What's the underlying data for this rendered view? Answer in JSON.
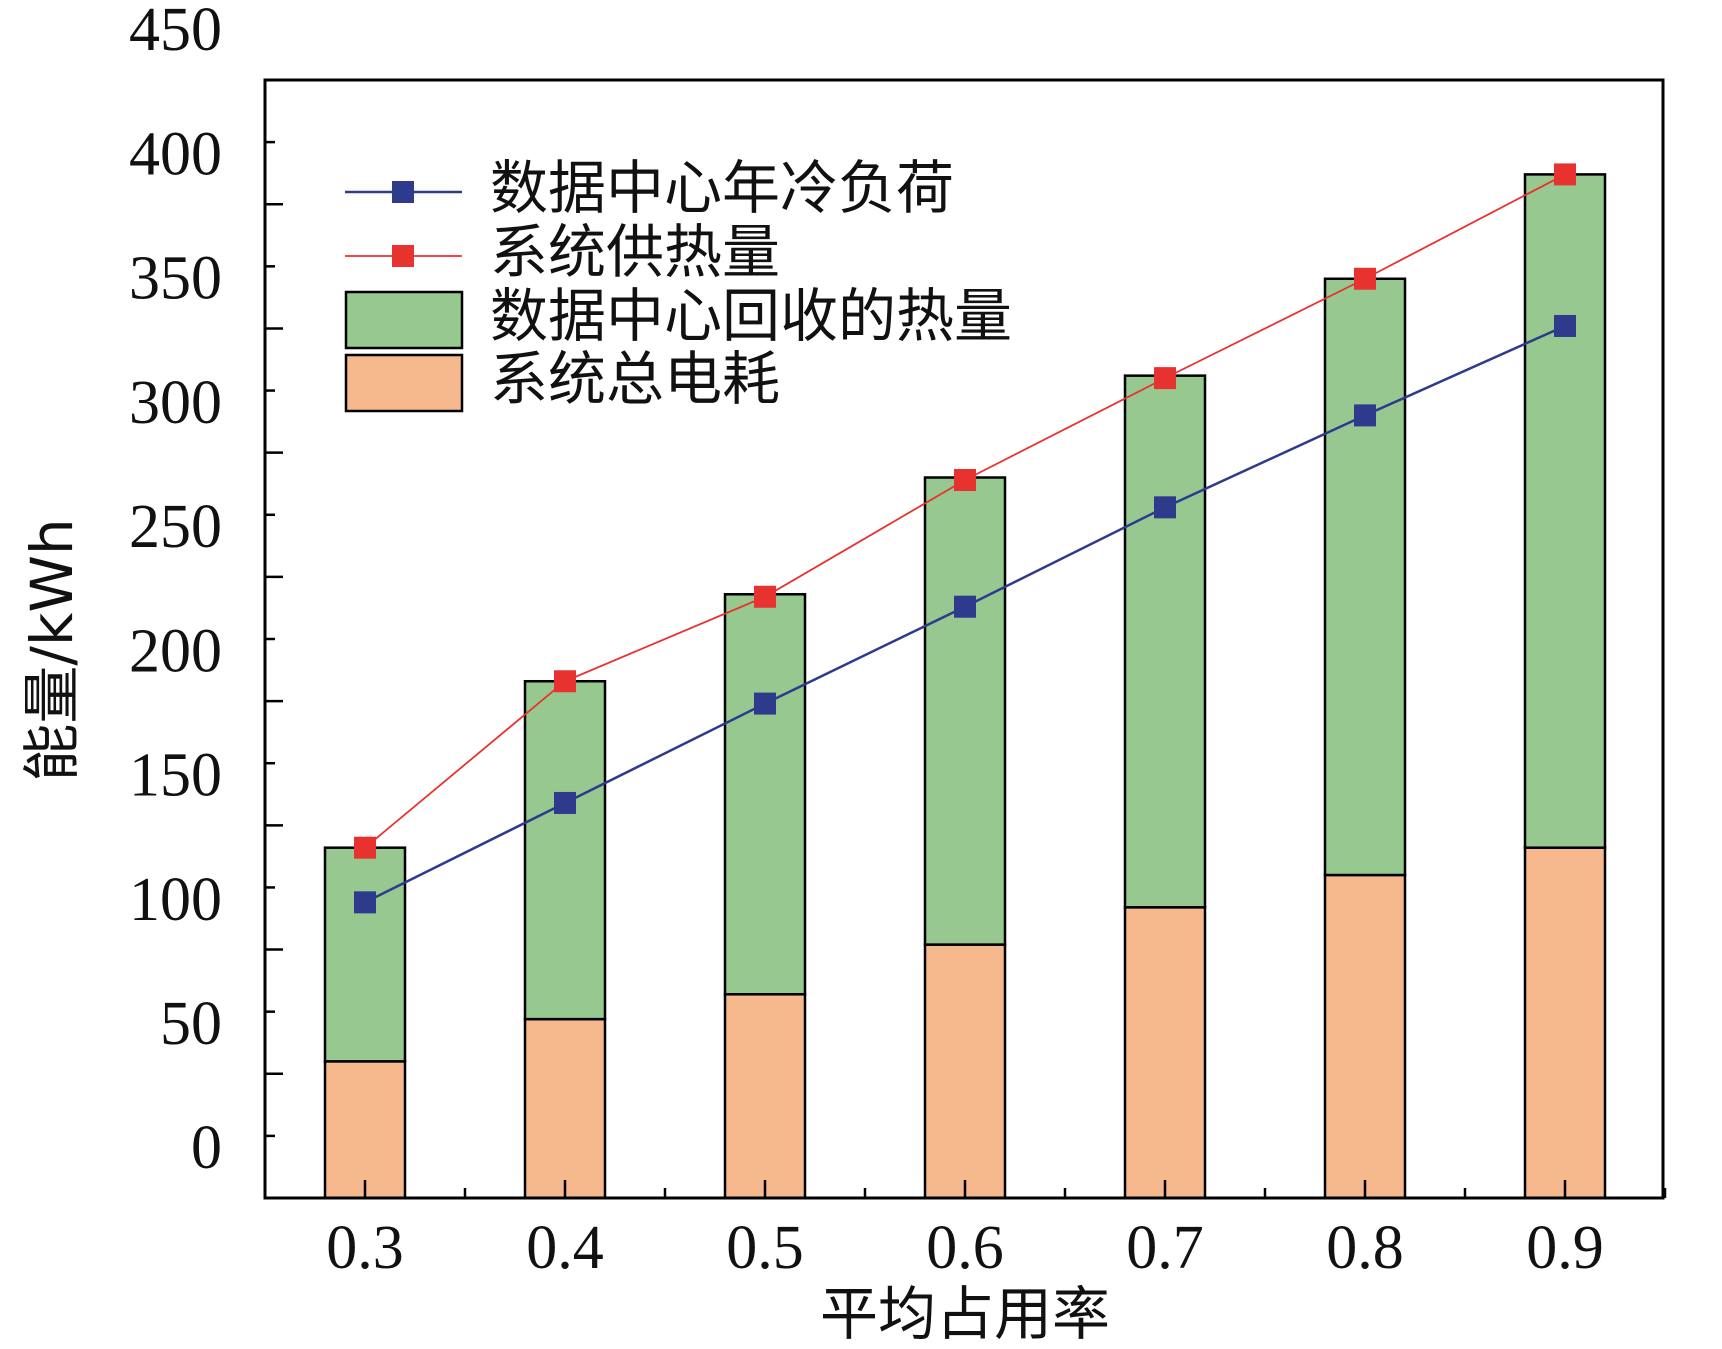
{
  "chart_data": {
    "type": "bar",
    "stacked": true,
    "categories": [
      "0.3",
      "0.4",
      "0.5",
      "0.6",
      "0.7",
      "0.8",
      "0.9"
    ],
    "xlabel": "平均占用率",
    "ylabel": "能量/kWh",
    "ylim": [
      0,
      450
    ],
    "yticks": [
      0,
      50,
      100,
      150,
      200,
      250,
      300,
      350,
      400,
      450
    ],
    "grid": false,
    "legend_position": "top-left",
    "series": [
      {
        "name": "系统总电耗",
        "kind": "bar",
        "color": "#f6b98e",
        "values": [
          55,
          72,
          82,
          102,
          117,
          130,
          141
        ]
      },
      {
        "name": "数据中心回收的热量",
        "kind": "bar",
        "color": "#96c88f",
        "values": [
          86,
          136,
          161,
          188,
          214,
          240,
          271
        ]
      },
      {
        "name": "数据中心年冷负荷",
        "kind": "line",
        "color": "#2e3a8c",
        "marker": "square",
        "values": [
          119,
          159,
          199,
          238,
          278,
          315,
          351
        ]
      },
      {
        "name": "系统供热量",
        "kind": "line",
        "color": "#e8322f",
        "marker": "square",
        "values": [
          141,
          208,
          242,
          289,
          330,
          370,
          412
        ]
      }
    ],
    "legend_order": [
      "数据中心年冷负荷",
      "系统供热量",
      "数据中心回收的热量",
      "系统总电耗"
    ]
  }
}
